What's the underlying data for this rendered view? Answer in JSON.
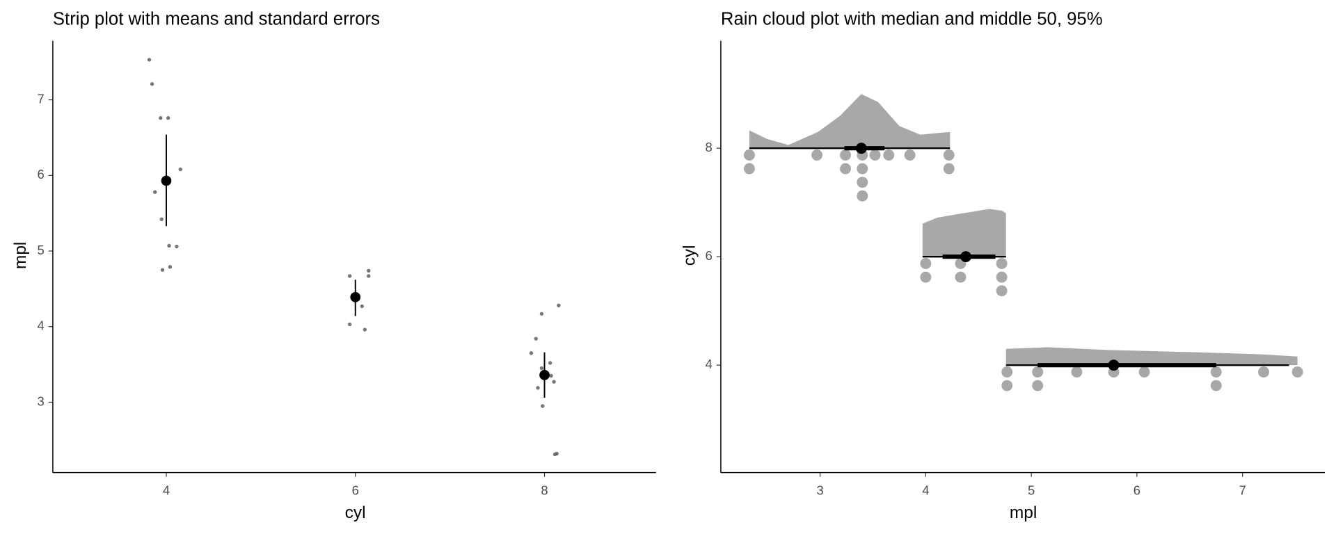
{
  "chart_data": [
    {
      "type": "strip",
      "title": "Strip plot with means and standard errors",
      "x_label": "cyl",
      "y_label": "mpl",
      "xlim": [
        2.8,
        9.18
      ],
      "xticks": [
        4,
        6,
        8
      ],
      "ylim": [
        2.07,
        7.78
      ],
      "yticks": [
        3,
        4,
        5,
        6,
        7
      ],
      "point_color": "#555555",
      "mean_color": "#000000",
      "points": {
        "x": [
          3.82,
          3.85,
          3.94,
          4.02,
          4.15,
          3.88,
          3.95,
          4.03,
          4.11,
          3.96,
          4.04,
          5.94,
          6.14,
          6.14,
          5.94,
          6.1,
          6.07,
          7.97,
          8.15,
          7.91,
          7.86,
          8.06,
          7.97,
          8.07,
          8.1,
          7.93,
          7.98,
          8.11,
          8.13
        ],
        "y": [
          7.53,
          7.21,
          6.76,
          6.76,
          6.08,
          5.78,
          5.42,
          5.07,
          5.06,
          4.75,
          4.79,
          4.67,
          4.74,
          4.67,
          4.03,
          3.96,
          4.27,
          4.17,
          4.28,
          3.84,
          3.65,
          3.52,
          3.45,
          3.35,
          3.27,
          3.19,
          2.95,
          2.31,
          2.32
        ]
      },
      "means": {
        "x": [
          4,
          6,
          8
        ],
        "values": [
          5.93,
          4.39,
          3.36
        ],
        "se_low": [
          5.33,
          4.14,
          3.06
        ],
        "se_high": [
          6.54,
          4.62,
          3.66
        ]
      }
    },
    {
      "type": "raincloud",
      "title": "Rain cloud plot with median and middle 50, 95%",
      "x_label": "mpl",
      "y_label": "cyl",
      "xlim": [
        2.06,
        7.78
      ],
      "xticks": [
        3,
        4,
        5,
        6,
        7
      ],
      "ylim": [
        2.02,
        9.98
      ],
      "yticks": [
        4,
        6,
        8
      ],
      "color": "#a8a8a8",
      "interval_color": "#000000",
      "groups": [
        {
          "cyl": 8,
          "density": {
            "x": [
              2.33,
              2.5,
              2.7,
              2.98,
              3.19,
              3.39,
              3.55,
              3.75,
              3.95,
              4.11,
              4.23
            ],
            "height": [
              0.33,
              0.17,
              0.06,
              0.3,
              0.6,
              1.0,
              0.85,
              0.41,
              0.25,
              0.28,
              0.3
            ]
          },
          "median": 3.39,
          "ci95": [
            2.33,
            4.23
          ],
          "ci50": [
            3.23,
            3.61
          ],
          "dots": [
            2.33,
            2.33,
            2.97,
            3.24,
            3.24,
            3.4,
            3.4,
            3.4,
            3.4,
            3.52,
            3.65,
            3.85,
            4.22,
            4.22
          ]
        },
        {
          "cyl": 6,
          "density": {
            "x": [
              3.97,
              4.11,
              4.35,
              4.6,
              4.72,
              4.76
            ],
            "height": [
              0.61,
              0.72,
              0.8,
              0.88,
              0.85,
              0.8
            ]
          },
          "median": 4.38,
          "ci95": [
            3.97,
            4.76
          ],
          "ci50": [
            4.16,
            4.66
          ],
          "dots": [
            4.0,
            4.0,
            4.33,
            4.33,
            4.72,
            4.72,
            4.72
          ]
        },
        {
          "cyl": 4,
          "density": {
            "x": [
              4.76,
              5.16,
              5.73,
              6.53,
              7.18,
              7.52
            ],
            "height": [
              0.3,
              0.33,
              0.28,
              0.24,
              0.2,
              0.16
            ]
          },
          "median": 5.78,
          "ci95": [
            4.76,
            7.44
          ],
          "ci50": [
            5.06,
            6.75
          ],
          "dots": [
            4.77,
            4.77,
            5.06,
            5.06,
            5.43,
            5.78,
            6.07,
            6.75,
            6.75,
            7.2,
            7.52
          ]
        }
      ]
    }
  ]
}
